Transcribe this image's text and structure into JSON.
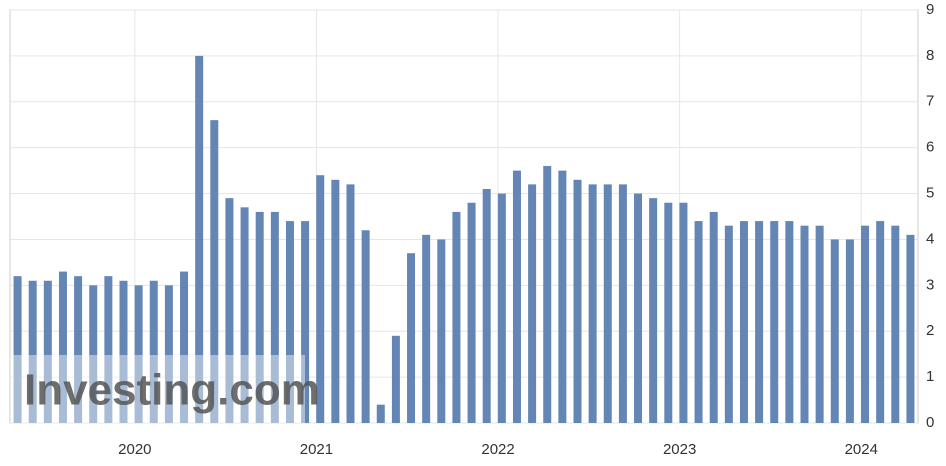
{
  "chart_data": {
    "type": "bar",
    "color": "#6386b5",
    "categories": [
      null,
      null,
      null,
      null,
      null,
      null,
      null,
      null,
      "2020",
      null,
      null,
      null,
      null,
      null,
      null,
      null,
      null,
      null,
      null,
      null,
      "2021",
      null,
      null,
      null,
      null,
      null,
      null,
      null,
      null,
      null,
      null,
      null,
      "2022",
      null,
      null,
      null,
      null,
      null,
      null,
      null,
      null,
      null,
      null,
      null,
      "2023",
      null,
      null,
      null,
      null,
      null,
      null,
      null,
      null,
      null,
      null,
      null,
      "2024",
      null,
      null,
      null
    ],
    "values": [
      3.2,
      3.1,
      3.1,
      3.3,
      3.2,
      3.0,
      3.2,
      3.1,
      3.0,
      3.1,
      3.0,
      3.3,
      8.0,
      6.6,
      4.9,
      4.7,
      4.6,
      4.6,
      4.4,
      4.4,
      5.4,
      5.3,
      5.2,
      4.2,
      0.4,
      1.9,
      3.7,
      4.1,
      4.0,
      4.6,
      4.8,
      5.1,
      5.0,
      5.5,
      5.2,
      5.6,
      5.5,
      5.3,
      5.2,
      5.2,
      5.2,
      5.0,
      4.9,
      4.8,
      4.8,
      4.4,
      4.6,
      4.3,
      4.4,
      4.4,
      4.4,
      4.4,
      4.3,
      4.3,
      4.0,
      4.0,
      4.3,
      4.4,
      4.3,
      4.1
    ],
    "ylim": [
      0,
      9
    ],
    "yticks": [
      0,
      1,
      2,
      3,
      4,
      5,
      6,
      7,
      8,
      9
    ],
    "grid": true,
    "watermark": "Investing.com"
  }
}
